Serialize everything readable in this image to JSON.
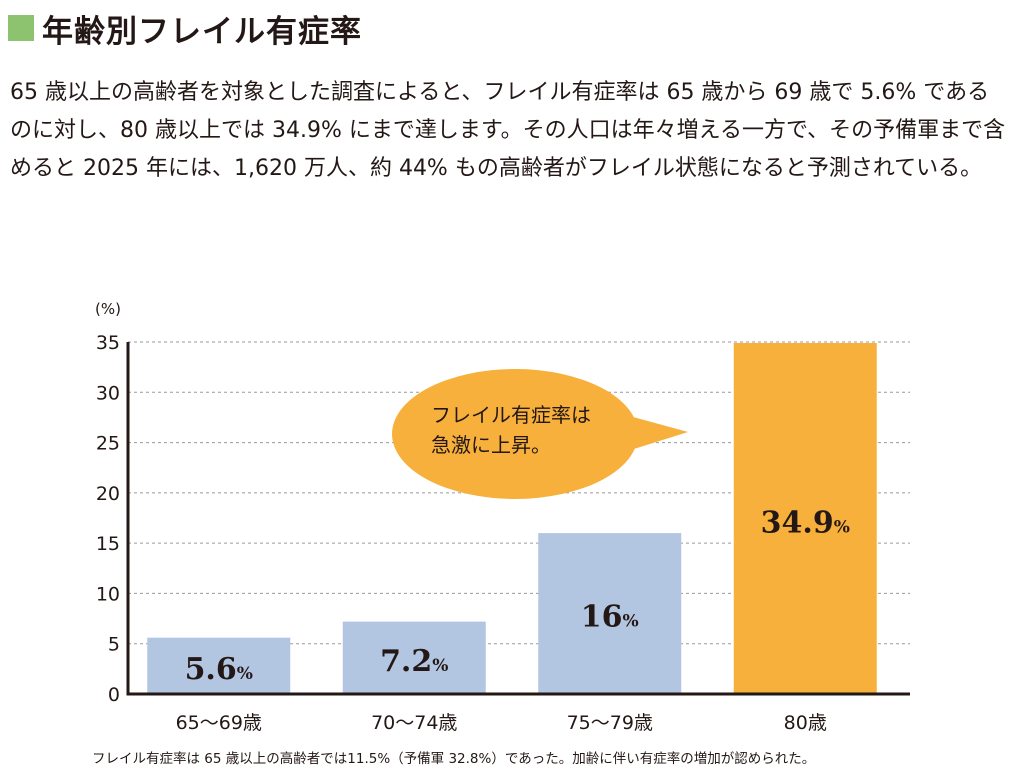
{
  "heading": {
    "title": "年齢別フレイル有症率",
    "marker_color": "#8dc26f"
  },
  "intro": {
    "text": "65 歳以上の高齢者を対象とした調査によると、フレイル有症率は 65 歳から 69 歳で 5.6% であるのに対し、80 歳以上では 34.9% にまで達します。その人口は年々増える一方で、その予備軍まで含めると 2025 年には、1,620 万人、約 44% もの高齢者がフレイル状態になると予測されている。"
  },
  "chart_data": {
    "type": "bar",
    "ylabel": "(%)",
    "ylim": [
      0,
      35
    ],
    "yticks": [
      0,
      5,
      10,
      15,
      20,
      25,
      30,
      35
    ],
    "grid": true,
    "categories": [
      "65〜69歳",
      "70〜74歳",
      "75〜79歳",
      "80歳"
    ],
    "values": [
      5.6,
      7.2,
      16,
      34.9
    ],
    "value_labels": [
      "5.6",
      "7.2",
      "16",
      "34.9"
    ],
    "value_unit": "%",
    "bar_colors": [
      "#b2c6e2",
      "#b2c6e2",
      "#b2c6e2",
      "#f7b03c"
    ],
    "annotation": {
      "lines": [
        "フレイル有症率は",
        "急激に上昇。"
      ],
      "fill": "#f7b03c"
    }
  },
  "caption": {
    "text": "フレイル有症率は 65 歳以上の高齢者では11.5%（予備軍 32.8%）であった。加齢に伴い有症率の増加が認められた。"
  }
}
